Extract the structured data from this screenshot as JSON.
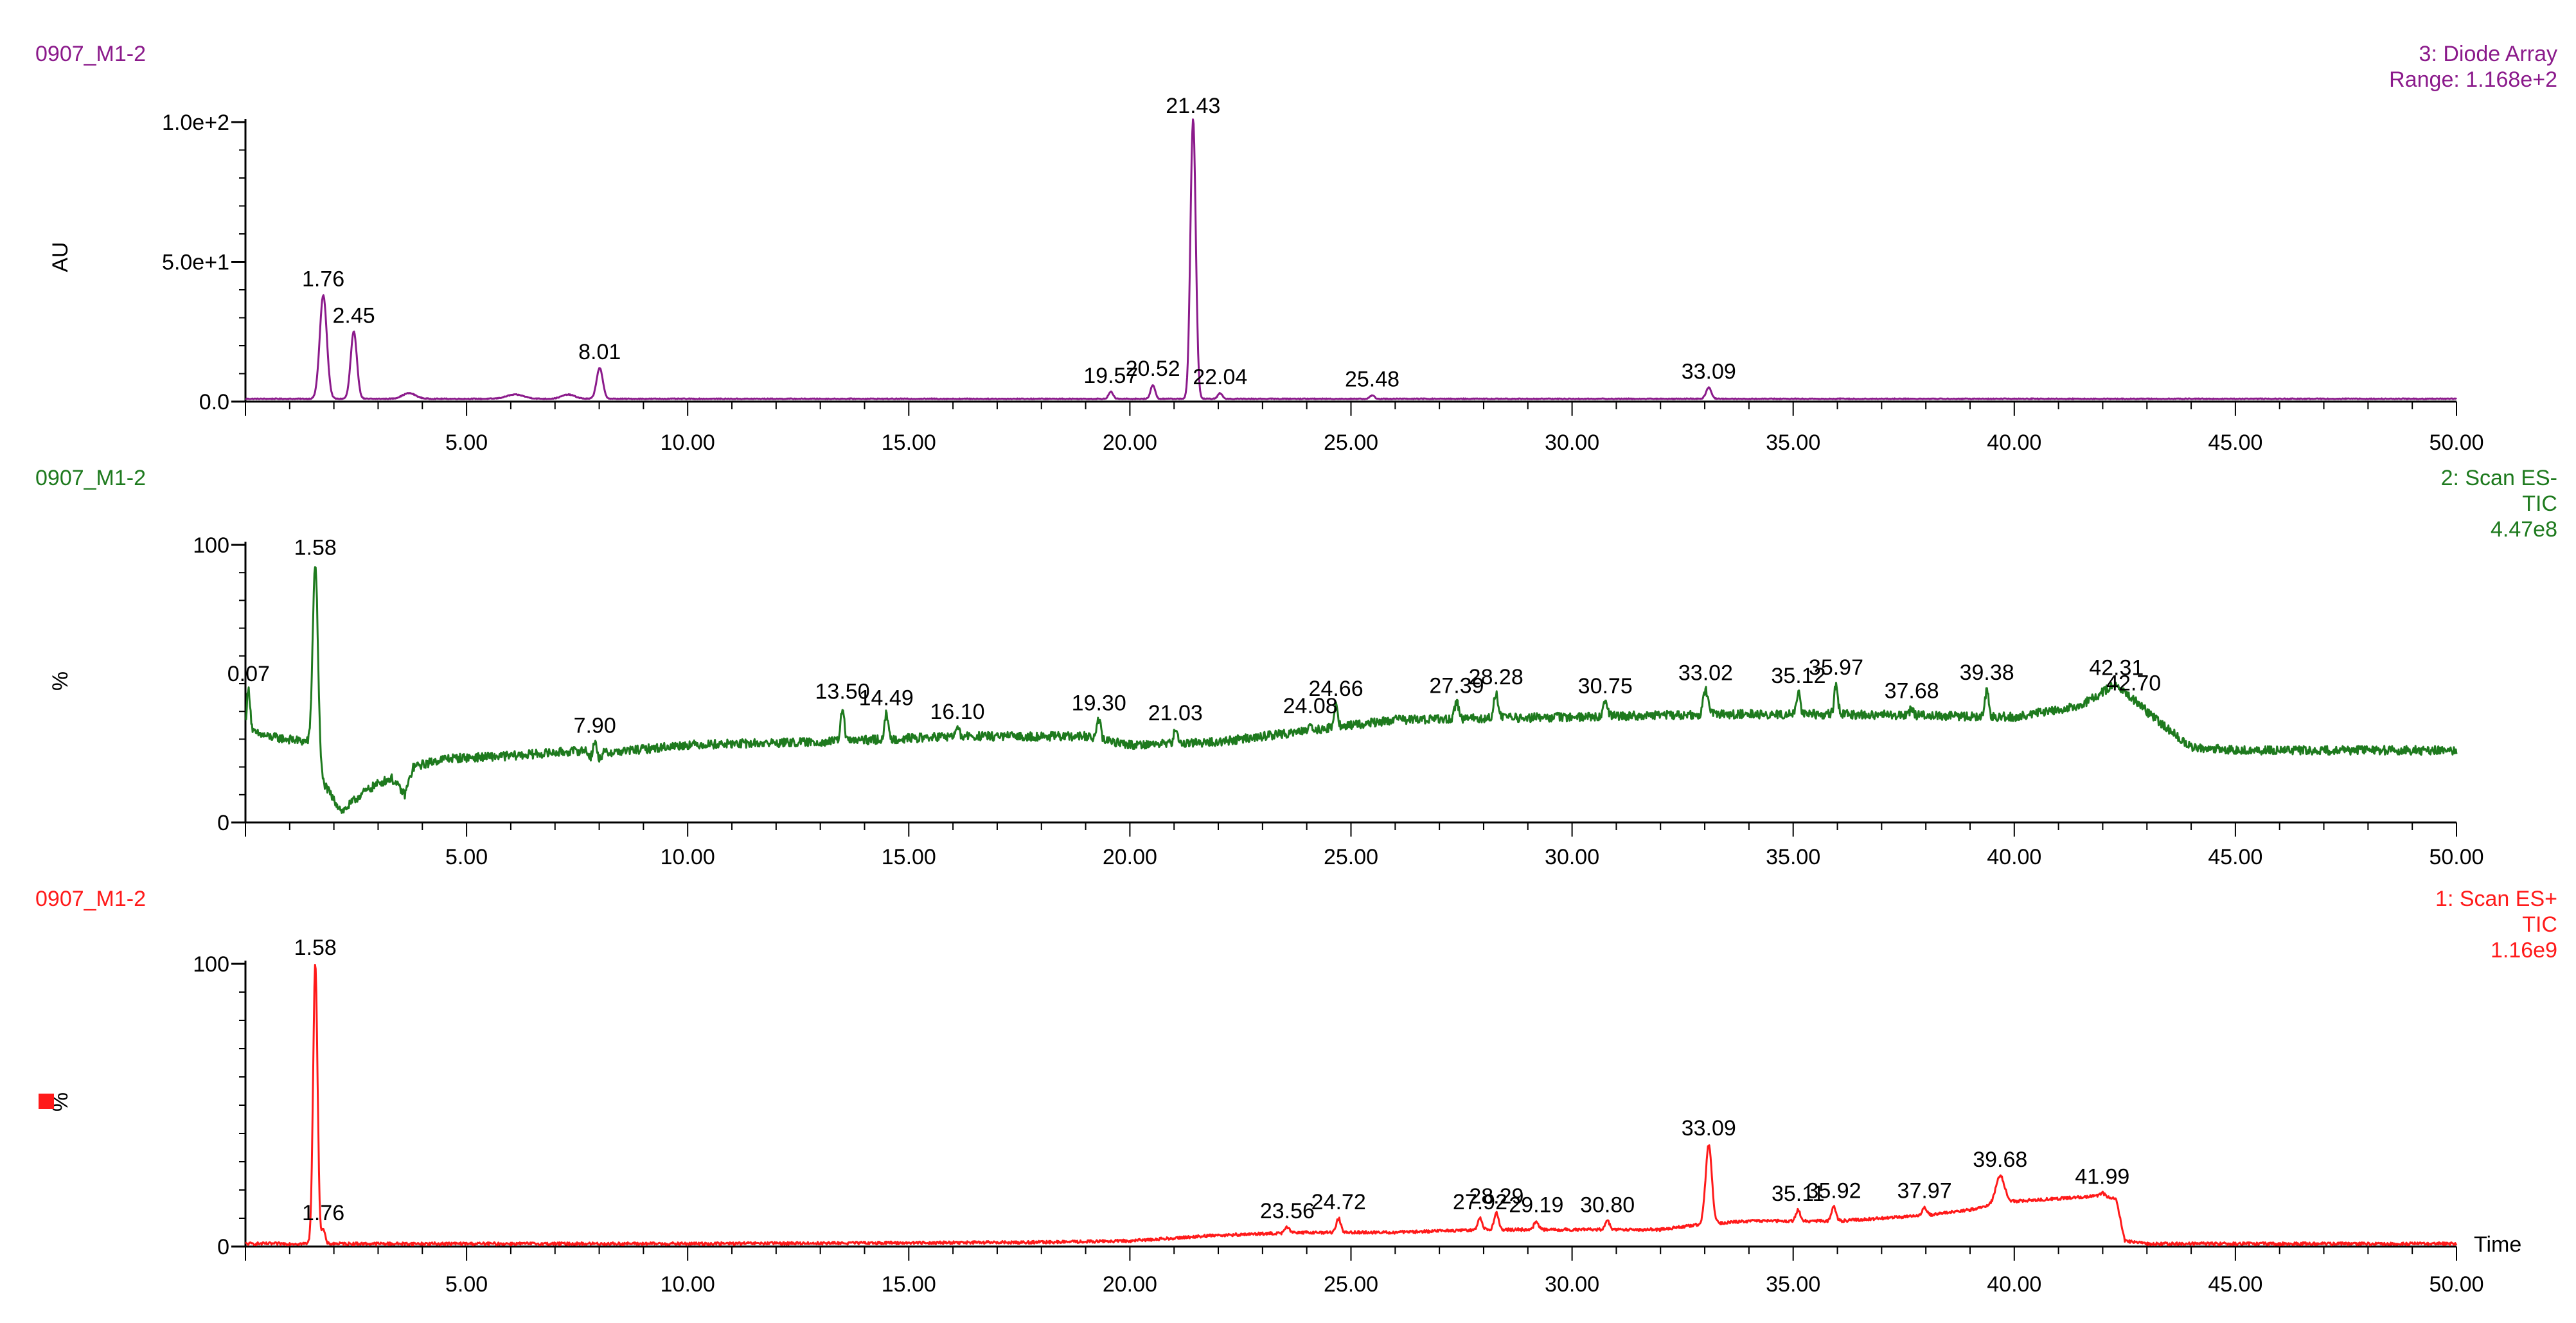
{
  "chart_data": [
    {
      "type": "line",
      "sample_name": "0907_M1-2",
      "title": "",
      "meta_lines": [
        "3: Diode Array",
        "Range: 1.168e+2"
      ],
      "xlabel": "",
      "ylabel": "AU",
      "xlim": [
        0,
        50
      ],
      "ylim": [
        0,
        100
      ],
      "xticks": [
        5,
        10,
        15,
        20,
        25,
        30,
        35,
        40,
        45,
        50
      ],
      "xtick_labels": [
        "5.00",
        "10.00",
        "15.00",
        "20.00",
        "25.00",
        "30.00",
        "35.00",
        "40.00",
        "45.00",
        "50.00"
      ],
      "yticks": [
        0,
        50,
        100
      ],
      "ytick_labels": [
        "0.0",
        "5.0e+1",
        "1.0e+2"
      ],
      "color": "#8b1a8b",
      "baseline": 1,
      "noise": 0.15,
      "peaks": [
        {
          "rt": 1.76,
          "height": 37,
          "width": 0.08,
          "label": "1.76"
        },
        {
          "rt": 2.45,
          "height": 24,
          "width": 0.07,
          "label": "2.45"
        },
        {
          "rt": 3.7,
          "height": 2,
          "width": 0.15,
          "label": ""
        },
        {
          "rt": 6.1,
          "height": 1.5,
          "width": 0.2,
          "label": ""
        },
        {
          "rt": 7.3,
          "height": 1.5,
          "width": 0.15,
          "label": ""
        },
        {
          "rt": 8.01,
          "height": 11,
          "width": 0.07,
          "label": "8.01"
        },
        {
          "rt": 19.57,
          "height": 2.5,
          "width": 0.05,
          "label": "19.57"
        },
        {
          "rt": 20.52,
          "height": 5,
          "width": 0.05,
          "label": "20.52"
        },
        {
          "rt": 21.43,
          "height": 100,
          "width": 0.06,
          "label": "21.43"
        },
        {
          "rt": 22.04,
          "height": 2,
          "width": 0.05,
          "label": "22.04"
        },
        {
          "rt": 25.48,
          "height": 1.2,
          "width": 0.05,
          "label": "25.48"
        },
        {
          "rt": 33.09,
          "height": 4,
          "width": 0.06,
          "label": "33.09"
        }
      ]
    },
    {
      "type": "line",
      "sample_name": "0907_M1-2",
      "title": "",
      "meta_lines": [
        "2: Scan ES-",
        "TIC",
        "4.47e8"
      ],
      "xlabel": "",
      "ylabel": "%",
      "xlim": [
        0,
        50
      ],
      "ylim": [
        0,
        100
      ],
      "xticks": [
        5,
        10,
        15,
        20,
        25,
        30,
        35,
        40,
        45,
        50
      ],
      "xtick_labels": [
        "5.00",
        "10.00",
        "15.00",
        "20.00",
        "25.00",
        "30.00",
        "35.00",
        "40.00",
        "45.00",
        "50.00"
      ],
      "yticks": [
        0,
        100
      ],
      "ytick_labels": [
        "0",
        "100"
      ],
      "color": "#1e7a1e",
      "noise": 1.6,
      "baseline_points": [
        [
          0,
          33
        ],
        [
          0.5,
          31
        ],
        [
          1.4,
          29
        ],
        [
          1.55,
          20
        ],
        [
          2.0,
          8
        ],
        [
          2.2,
          4
        ],
        [
          2.6,
          10
        ],
        [
          3.0,
          14
        ],
        [
          3.3,
          16
        ],
        [
          3.6,
          10
        ],
        [
          3.8,
          20
        ],
        [
          4.5,
          23
        ],
        [
          6,
          24
        ],
        [
          7.7,
          26
        ],
        [
          7.9,
          21
        ],
        [
          8.1,
          25
        ],
        [
          10,
          28
        ],
        [
          13,
          29
        ],
        [
          16,
          31
        ],
        [
          19,
          31
        ],
        [
          20,
          28
        ],
        [
          22,
          29
        ],
        [
          24,
          33
        ],
        [
          26,
          37
        ],
        [
          30,
          38
        ],
        [
          33,
          39
        ],
        [
          36,
          39
        ],
        [
          40,
          38
        ],
        [
          41.5,
          42
        ],
        [
          42.3,
          50
        ],
        [
          43,
          40
        ],
        [
          44,
          27
        ],
        [
          45,
          26
        ],
        [
          50,
          26
        ]
      ],
      "peaks": [
        {
          "rt": 0.07,
          "height": 15,
          "width": 0.04,
          "label": "0.07"
        },
        {
          "rt": 1.58,
          "height": 74,
          "width": 0.06,
          "label": "1.58"
        },
        {
          "rt": 7.9,
          "height": 8,
          "width": 0.04,
          "label": "7.90"
        },
        {
          "rt": 13.5,
          "height": 12,
          "width": 0.04,
          "label": "13.50"
        },
        {
          "rt": 14.49,
          "height": 9,
          "width": 0.04,
          "label": "14.49"
        },
        {
          "rt": 16.1,
          "height": 3,
          "width": 0.04,
          "label": "16.10"
        },
        {
          "rt": 19.3,
          "height": 7,
          "width": 0.04,
          "label": "19.30"
        },
        {
          "rt": 21.03,
          "height": 5,
          "width": 0.04,
          "label": "21.03"
        },
        {
          "rt": 24.08,
          "height": 3,
          "width": 0.04,
          "label": "24.08"
        },
        {
          "rt": 24.66,
          "height": 8,
          "width": 0.04,
          "label": "24.66"
        },
        {
          "rt": 27.39,
          "height": 6,
          "width": 0.05,
          "label": "27.39"
        },
        {
          "rt": 28.28,
          "height": 9,
          "width": 0.05,
          "label": "28.28"
        },
        {
          "rt": 30.75,
          "height": 5,
          "width": 0.05,
          "label": "30.75"
        },
        {
          "rt": 33.02,
          "height": 9,
          "width": 0.05,
          "label": "33.02"
        },
        {
          "rt": 35.12,
          "height": 8,
          "width": 0.04,
          "label": "35.12"
        },
        {
          "rt": 35.97,
          "height": 11,
          "width": 0.04,
          "label": "35.97"
        },
        {
          "rt": 37.68,
          "height": 3,
          "width": 0.04,
          "label": "37.68"
        },
        {
          "rt": 39.38,
          "height": 10,
          "width": 0.04,
          "label": "39.38"
        },
        {
          "rt": 42.31,
          "height": 0,
          "width": 0.05,
          "label": "42.31"
        },
        {
          "rt": 42.7,
          "height": 0,
          "width": 0.05,
          "label": "42.70"
        }
      ]
    },
    {
      "type": "line",
      "sample_name": "0907_M1-2",
      "title": "",
      "meta_lines": [
        "1: Scan ES+",
        "TIC",
        "1.16e9"
      ],
      "xlabel": "Time",
      "ylabel": "%",
      "xlim": [
        0,
        50
      ],
      "ylim": [
        0,
        100
      ],
      "xticks": [
        5,
        10,
        15,
        20,
        25,
        30,
        35,
        40,
        45,
        50
      ],
      "xtick_labels": [
        "5.00",
        "10.00",
        "15.00",
        "20.00",
        "25.00",
        "30.00",
        "35.00",
        "40.00",
        "45.00",
        "50.00"
      ],
      "yticks": [
        0,
        100
      ],
      "ytick_labels": [
        "0",
        "100"
      ],
      "color": "#ff1a1a",
      "noise": 0.5,
      "baseline_points": [
        [
          0,
          1
        ],
        [
          1.5,
          1
        ],
        [
          2.5,
          1
        ],
        [
          10,
          1
        ],
        [
          18,
          1.5
        ],
        [
          20,
          2
        ],
        [
          22,
          4
        ],
        [
          24,
          5
        ],
        [
          26,
          5
        ],
        [
          28,
          6
        ],
        [
          30,
          6
        ],
        [
          32,
          6
        ],
        [
          33,
          8
        ],
        [
          34,
          9
        ],
        [
          36,
          9
        ],
        [
          38,
          11
        ],
        [
          39,
          13
        ],
        [
          40,
          16
        ],
        [
          41,
          17
        ],
        [
          42,
          18
        ],
        [
          42.3,
          17
        ],
        [
          42.5,
          2
        ],
        [
          43,
          1
        ],
        [
          50,
          1
        ]
      ],
      "peaks": [
        {
          "rt": 1.58,
          "height": 99,
          "width": 0.05,
          "label": "1.58"
        },
        {
          "rt": 1.76,
          "height": 5,
          "width": 0.04,
          "label": "1.76"
        },
        {
          "rt": 23.56,
          "height": 2,
          "width": 0.05,
          "label": "23.56"
        },
        {
          "rt": 24.72,
          "height": 5,
          "width": 0.05,
          "label": "24.72"
        },
        {
          "rt": 27.92,
          "height": 4,
          "width": 0.05,
          "label": "27.92"
        },
        {
          "rt": 28.29,
          "height": 6,
          "width": 0.05,
          "label": "28.29"
        },
        {
          "rt": 29.19,
          "height": 3,
          "width": 0.05,
          "label": "29.19"
        },
        {
          "rt": 30.8,
          "height": 3,
          "width": 0.05,
          "label": "30.80"
        },
        {
          "rt": 33.09,
          "height": 28,
          "width": 0.07,
          "label": "33.09"
        },
        {
          "rt": 35.11,
          "height": 4,
          "width": 0.05,
          "label": "35.11"
        },
        {
          "rt": 35.92,
          "height": 5,
          "width": 0.05,
          "label": "35.92"
        },
        {
          "rt": 37.97,
          "height": 3,
          "width": 0.05,
          "label": "37.97"
        },
        {
          "rt": 39.68,
          "height": 10,
          "width": 0.1,
          "label": "39.68"
        },
        {
          "rt": 41.99,
          "height": 1,
          "width": 0.05,
          "label": "41.99"
        }
      ]
    }
  ],
  "legend_marker": {
    "color": "#ff1a1a"
  }
}
